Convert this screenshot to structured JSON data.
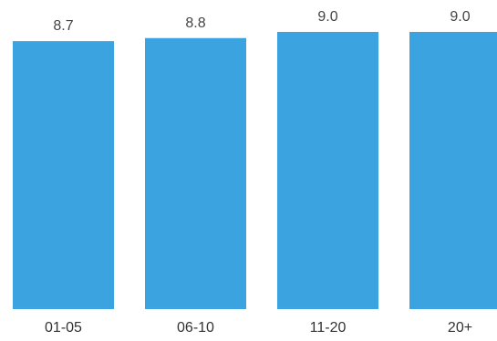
{
  "chart_data": {
    "type": "bar",
    "categories": [
      "01-05",
      "06-10",
      "11-20",
      "20+"
    ],
    "values": [
      8.7,
      8.8,
      9.0,
      9.0
    ],
    "value_labels": [
      "8.7",
      "8.8",
      "9.0",
      "9.0"
    ],
    "title": "",
    "xlabel": "",
    "ylabel": "",
    "ylim": [
      0,
      9.0
    ],
    "grid": false,
    "legend": "none",
    "bar_color": "#3ba3e0"
  }
}
